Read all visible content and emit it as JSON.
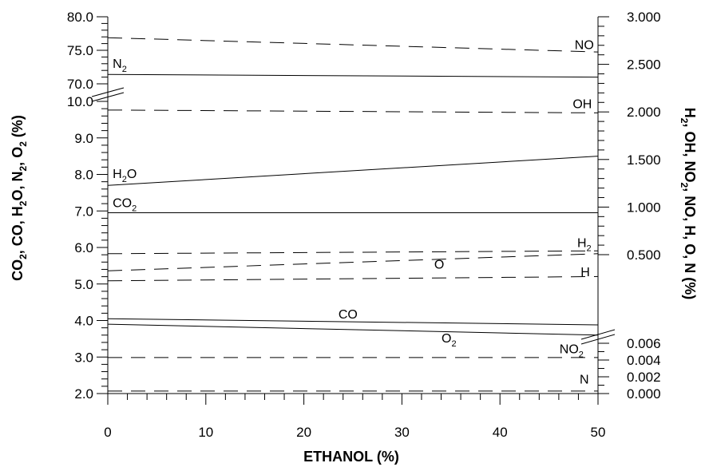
{
  "chart_data": {
    "type": "line",
    "x_axis": {
      "title": "ETHANOL (%)",
      "range": [
        0,
        50
      ],
      "ticks": [
        0,
        10,
        20,
        30,
        40,
        50
      ],
      "tick_labels": [
        "0",
        "10",
        "20",
        "30",
        "40",
        "50"
      ]
    },
    "left_axis": {
      "title_parts": [
        "CO",
        "2",
        ", CO, H",
        "2",
        "O, N",
        "2",
        ", O",
        "2",
        " (%)"
      ],
      "lower_range": [
        2.0,
        10.0
      ],
      "lower_ticks": [
        "2.0",
        "3.0",
        "4.0",
        "5.0",
        "6.0",
        "7.0",
        "8.0",
        "9.0",
        "10.0"
      ],
      "upper_range": [
        70.0,
        80.0
      ],
      "upper_ticks": [
        "70.0",
        "75.0",
        "80.0"
      ],
      "broken": true
    },
    "right_axis": {
      "title_parts": [
        "H",
        "2",
        ", OH, NO",
        "2",
        ", NO, H, O, N (%)"
      ],
      "lower_range": [
        0.0,
        0.006
      ],
      "lower_ticks": [
        "0.000",
        "0.002",
        "0.004",
        "0.006"
      ],
      "upper_range": [
        0.0,
        3.0
      ],
      "upper_ticks": [
        "0.500",
        "1.000",
        "1.500",
        "2.000",
        "2.500",
        "3.000"
      ],
      "broken": true
    },
    "series": [
      {
        "name": "N",
        "sub": "2",
        "axis": "left",
        "style": "solid",
        "x": [
          0,
          50
        ],
        "y": [
          71.4,
          71.0
        ],
        "label_x": 0.5,
        "label_y": 72.4,
        "anchor": "start"
      },
      {
        "name": "H",
        "sub": "2",
        "post": "O",
        "axis": "left",
        "style": "solid",
        "x": [
          0,
          50
        ],
        "y": [
          7.7,
          8.5
        ],
        "label_x": 0.5,
        "label_y": 7.9,
        "anchor": "start"
      },
      {
        "name": "CO",
        "sub": "2",
        "axis": "left",
        "style": "solid",
        "x": [
          0,
          50
        ],
        "y": [
          6.95,
          6.95
        ],
        "label_x": 0.5,
        "label_y": 7.1,
        "anchor": "start"
      },
      {
        "name": "CO",
        "axis": "left",
        "style": "solid",
        "x": [
          0,
          50
        ],
        "y": [
          4.05,
          3.88
        ],
        "label_x": 24.5,
        "label_y": 4.05,
        "anchor": "middle"
      },
      {
        "name": "O",
        "sub": "2",
        "axis": "left",
        "style": "solid",
        "x": [
          0,
          50
        ],
        "y": [
          3.9,
          3.6
        ],
        "label_x": 34.8,
        "label_y": 3.4,
        "anchor": "middle"
      },
      {
        "name": "NO",
        "axis": "right",
        "style": "dashed",
        "x": [
          0,
          50
        ],
        "y": [
          2.78,
          2.63
        ],
        "label_x": 48.6,
        "label_y": 2.66,
        "anchor": "middle"
      },
      {
        "name": "OH",
        "axis": "right",
        "style": "dashed",
        "x": [
          0,
          50
        ],
        "y": [
          2.02,
          1.99
        ],
        "label_x": 48.4,
        "label_y": 2.04,
        "anchor": "middle"
      },
      {
        "name": "H",
        "sub": "2",
        "axis": "right",
        "style": "dashed",
        "x": [
          0,
          50
        ],
        "y": [
          0.51,
          0.54
        ],
        "label_x": 48.6,
        "label_y": 0.58,
        "anchor": "middle"
      },
      {
        "name": "O",
        "axis": "right",
        "style": "dashed",
        "x": [
          0,
          50
        ],
        "y": [
          0.33,
          0.51
        ],
        "label_x": 33.8,
        "label_y": 0.355,
        "anchor": "middle"
      },
      {
        "name": "H",
        "axis": "right",
        "style": "dashed",
        "x": [
          0,
          50
        ],
        "y": [
          0.225,
          0.27
        ],
        "label_x": 48.7,
        "label_y": 0.275,
        "anchor": "middle"
      },
      {
        "name": "NO",
        "sub": "2",
        "axis": "right-lower",
        "style": "dashed",
        "x": [
          0,
          50
        ],
        "y": [
          0.0043,
          0.0043
        ],
        "label_x": 47.3,
        "label_y": 0.0048,
        "anchor": "middle"
      },
      {
        "name": "N",
        "axis": "right-lower",
        "style": "dashed",
        "x": [
          0,
          50
        ],
        "y": [
          0.0003,
          0.0003
        ],
        "label_x": 48.6,
        "label_y": 0.0012,
        "anchor": "middle"
      }
    ]
  }
}
